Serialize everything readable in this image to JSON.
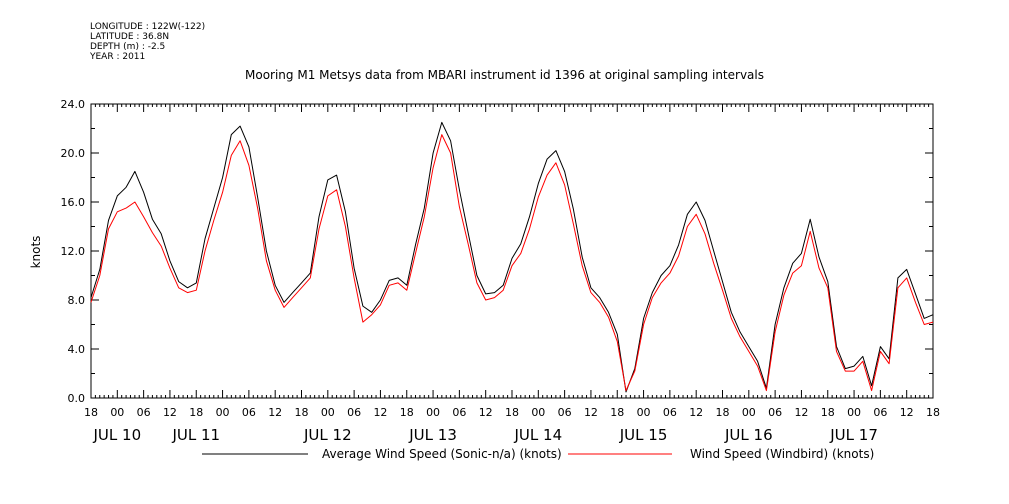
{
  "meta": {
    "longitude": "LONGITUDE : 122W(-122)",
    "latitude": "LATITUDE : 36.8N",
    "depth": "DEPTH (m) : -2.5",
    "year": "YEAR : 2011"
  },
  "chart_data": {
    "type": "line",
    "title": "Mooring M1 Metsys data from MBARI instrument id 1396 at original sampling intervals",
    "ylabel": "knots",
    "xlabel": "",
    "x_units": "hours since 2011-07-09 18:00",
    "xlim": [
      0,
      192
    ],
    "ylim": [
      0,
      24
    ],
    "yticks": [
      "0.0",
      "4.0",
      "8.0",
      "12.0",
      "16.0",
      "20.0",
      "24.0"
    ],
    "x_hour_ticks": [
      "18",
      "00",
      "06",
      "12",
      "18",
      "00",
      "06",
      "12",
      "18",
      "00",
      "06",
      "12",
      "18",
      "00",
      "06",
      "12",
      "18",
      "00",
      "06",
      "12",
      "18",
      "00",
      "06",
      "12",
      "18",
      "00",
      "06",
      "12",
      "18",
      "00",
      "06",
      "12",
      "18"
    ],
    "x_date_labels": [
      {
        "label": "JUL 10",
        "x": 6
      },
      {
        "label": "JUL 11",
        "x": 24
      },
      {
        "label": "JUL 12",
        "x": 54
      },
      {
        "label": "JUL 13",
        "x": 78
      },
      {
        "label": "JUL 14",
        "x": 102
      },
      {
        "label": "JUL 15",
        "x": 126
      },
      {
        "label": "JUL 16",
        "x": 150
      },
      {
        "label": "JUL 17",
        "x": 174
      }
    ],
    "series": [
      {
        "name": "Average Wind Speed (Sonic-n/a) (knots)",
        "color": "#000000",
        "x": [
          0,
          2,
          4,
          6,
          8,
          10,
          12,
          14,
          16,
          18,
          20,
          22,
          24,
          26,
          28,
          30,
          32,
          34,
          36,
          38,
          40,
          42,
          44,
          46,
          48,
          50,
          52,
          54,
          56,
          58,
          60,
          62,
          64,
          66,
          68,
          70,
          72,
          74,
          76,
          78,
          80,
          82,
          84,
          86,
          88,
          90,
          92,
          94,
          96,
          98,
          100,
          102,
          104,
          106,
          108,
          110,
          112,
          114,
          116,
          118,
          120,
          122,
          124,
          126,
          128,
          130,
          132,
          134,
          136,
          138,
          140,
          142,
          144,
          146,
          148,
          150,
          152,
          154,
          156,
          158,
          160,
          162,
          164,
          166,
          168,
          170,
          172,
          174,
          176,
          178,
          180,
          182,
          184,
          186,
          188,
          190,
          192
        ],
        "y": [
          8.2,
          10.5,
          14.5,
          16.5,
          17.2,
          18.5,
          16.8,
          14.6,
          13.4,
          11.2,
          9.5,
          9.0,
          9.4,
          13.0,
          15.5,
          18.0,
          21.5,
          22.2,
          20.5,
          16.4,
          12.0,
          9.2,
          7.8,
          8.6,
          9.4,
          10.2,
          14.8,
          17.8,
          18.2,
          15.2,
          10.6,
          7.5,
          7.0,
          8.0,
          9.6,
          9.8,
          9.2,
          12.5,
          15.5,
          20.0,
          22.5,
          21.0,
          17.0,
          13.5,
          10.0,
          8.5,
          8.6,
          9.2,
          11.4,
          12.6,
          14.8,
          17.5,
          19.5,
          20.2,
          18.5,
          15.4,
          11.5,
          9.0,
          8.2,
          7.0,
          5.2,
          0.5,
          2.4,
          6.5,
          8.6,
          10.0,
          10.8,
          12.5,
          15.0,
          16.0,
          14.5,
          12.0,
          9.5,
          7.0,
          5.4,
          4.2,
          3.0,
          0.8,
          6.0,
          9.0,
          11.0,
          11.8,
          14.6,
          11.5,
          9.5,
          4.2,
          2.4,
          2.6,
          3.4,
          1.0,
          4.2,
          3.2,
          9.8,
          10.5,
          8.5,
          6.5,
          6.8
        ]
      },
      {
        "name": "Wind Speed (Windbird) (knots)",
        "color": "#ff0000",
        "x": [
          0,
          2,
          4,
          6,
          8,
          10,
          12,
          14,
          16,
          18,
          20,
          22,
          24,
          26,
          28,
          30,
          32,
          34,
          36,
          38,
          40,
          42,
          44,
          46,
          48,
          50,
          52,
          54,
          56,
          58,
          60,
          62,
          64,
          66,
          68,
          70,
          72,
          74,
          76,
          78,
          80,
          82,
          84,
          86,
          88,
          90,
          92,
          94,
          96,
          98,
          100,
          102,
          104,
          106,
          108,
          110,
          112,
          114,
          116,
          118,
          120,
          122,
          124,
          126,
          128,
          130,
          132,
          134,
          136,
          138,
          140,
          142,
          144,
          146,
          148,
          150,
          152,
          154,
          156,
          158,
          160,
          162,
          164,
          166,
          168,
          170,
          172,
          174,
          176,
          178,
          180,
          182,
          184,
          186,
          188,
          190,
          192
        ],
        "y": [
          7.8,
          10.0,
          13.8,
          15.2,
          15.5,
          16.0,
          14.8,
          13.5,
          12.4,
          10.6,
          9.0,
          8.6,
          8.8,
          12.0,
          14.5,
          16.8,
          19.8,
          21.0,
          19.0,
          15.5,
          11.2,
          8.8,
          7.4,
          8.2,
          9.0,
          9.8,
          13.8,
          16.5,
          17.0,
          14.0,
          9.8,
          6.2,
          6.8,
          7.6,
          9.2,
          9.4,
          8.8,
          11.8,
          14.8,
          18.8,
          21.5,
          20.0,
          15.6,
          12.6,
          9.4,
          8.0,
          8.2,
          8.8,
          10.8,
          11.8,
          13.8,
          16.4,
          18.2,
          19.2,
          17.4,
          14.2,
          10.8,
          8.6,
          7.8,
          6.6,
          4.6,
          0.6,
          2.2,
          6.0,
          8.2,
          9.4,
          10.2,
          11.6,
          14.0,
          15.0,
          13.4,
          11.0,
          8.8,
          6.5,
          5.0,
          3.8,
          2.6,
          0.6,
          5.4,
          8.4,
          10.2,
          10.8,
          13.6,
          10.6,
          9.0,
          3.8,
          2.2,
          2.2,
          3.0,
          0.6,
          3.8,
          2.8,
          9.0,
          9.8,
          7.8,
          6.0,
          6.2
        ]
      }
    ],
    "legend_position": "bottom",
    "grid": false
  }
}
